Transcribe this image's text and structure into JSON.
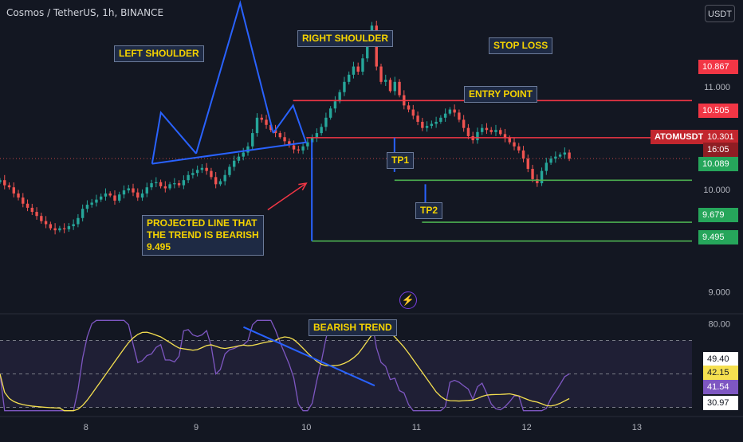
{
  "header": {
    "title": "Cosmos / TetherUS, 1h, BINANCE",
    "currency_button": "USDT"
  },
  "annotations": {
    "left_shoulder": "LEFT SHOULDER",
    "right_shoulder": "RIGHT SHOULDER",
    "stop_loss": "STOP LOSS",
    "entry_point": "ENTRY POINT",
    "tp1": "TP1",
    "tp2": "TP2",
    "projected_line_1": "PROJECTED LINE THAT",
    "projected_line_2": "THE TREND IS BEARISH",
    "projected_line_3": "9.495",
    "bearish_trend": "BEARISH TREND"
  },
  "colors": {
    "background": "#131722",
    "up": "#26a69a",
    "down": "#ef5350",
    "annotation_line": "#2962ff",
    "stop_line": "#f23645",
    "target_line": "#4caf50",
    "rsi_line": "#7e57c2",
    "rsi_ma": "#f5e050"
  },
  "chart_data": [
    {
      "type": "candlestick",
      "symbol": "ATOMUSDT",
      "interval": "1h",
      "x_ticks": [
        "8",
        "9",
        "10",
        "11",
        "12",
        "13"
      ],
      "x_tick_days": [
        8,
        9,
        10,
        11,
        12,
        13
      ],
      "xlim_days": [
        7.22,
        13.5
      ],
      "y_ticks": [
        "11.000",
        "10.000",
        "9.000"
      ],
      "y_tick_values": [
        11.0,
        10.0,
        9.0
      ],
      "ylim": [
        8.8,
        11.85
      ],
      "last_price": {
        "label": "ATOMUSDT",
        "value": "10.301",
        "countdown": "16:05"
      },
      "levels": [
        {
          "name": "stop-loss",
          "value": 10.867,
          "label": "10.867",
          "from_day": 9.88
        },
        {
          "name": "entry-point",
          "value": 10.505,
          "label": "10.505",
          "from_day": 10.0
        },
        {
          "name": "tp1",
          "value": 10.089,
          "label": "10.089",
          "from_day": 10.8
        },
        {
          "name": "tp2",
          "value": 9.679,
          "label": "9.679",
          "from_day": 11.05
        },
        {
          "name": "projected",
          "value": 9.495,
          "label": "9.495",
          "from_day": 10.05
        }
      ],
      "pattern_lines": [
        {
          "name": "left-shoulder",
          "points": [
            [
              8.6,
              10.25
            ],
            [
              8.68,
              10.75
            ],
            [
              9.0,
              10.35
            ]
          ]
        },
        {
          "name": "head",
          "points": [
            [
              9.0,
              10.35
            ],
            [
              9.4,
              11.82
            ],
            [
              9.7,
              10.55
            ]
          ]
        },
        {
          "name": "right-shoulder",
          "points": [
            [
              9.7,
              10.55
            ],
            [
              9.88,
              10.82
            ],
            [
              10.0,
              10.45
            ]
          ]
        },
        {
          "name": "neckline",
          "points": [
            [
              8.6,
              10.25
            ],
            [
              10.0,
              10.46
            ]
          ]
        },
        {
          "name": "projection",
          "points": [
            [
              10.05,
              10.48
            ],
            [
              10.05,
              9.495
            ]
          ]
        },
        {
          "name": "tp1-span",
          "points": [
            [
              10.8,
              10.505
            ],
            [
              10.8,
              10.17
            ]
          ]
        },
        {
          "name": "tp2-span",
          "points": [
            [
              11.08,
              10.05
            ],
            [
              11.08,
              9.72
            ]
          ]
        }
      ],
      "arrow": {
        "from": [
          9.65,
          9.8
        ],
        "to": [
          10.0,
          10.06
        ]
      },
      "closes": [
        10.09,
        10.04,
        10.02,
        9.96,
        9.92,
        9.86,
        9.82,
        9.78,
        9.74,
        9.69,
        9.66,
        9.62,
        9.6,
        9.62,
        9.61,
        9.64,
        9.66,
        9.72,
        9.81,
        9.85,
        9.87,
        9.9,
        9.93,
        9.96,
        9.94,
        9.89,
        9.95,
        9.99,
        10.01,
        9.97,
        9.92,
        9.96,
        10.02,
        10.06,
        10.07,
        10.03,
        10.01,
        10.05,
        10.06,
        10.04,
        10.09,
        10.14,
        10.16,
        10.19,
        10.21,
        10.18,
        10.12,
        10.05,
        10.08,
        10.14,
        10.22,
        10.28,
        10.32,
        10.36,
        10.42,
        10.55,
        10.7,
        10.68,
        10.63,
        10.58,
        10.55,
        10.51,
        10.47,
        10.43,
        10.39,
        10.38,
        10.42,
        10.46,
        10.5,
        10.55,
        10.61,
        10.7,
        10.79,
        10.86,
        10.95,
        11.05,
        11.12,
        11.2,
        11.15,
        11.28,
        11.45,
        11.6,
        11.2,
        11.05,
        11.07,
        10.96,
        11.05,
        10.92,
        10.82,
        10.78,
        10.72,
        10.66,
        10.6,
        10.62,
        10.64,
        10.66,
        10.7,
        10.74,
        10.78,
        10.75,
        10.68,
        10.6,
        10.52,
        10.48,
        10.56,
        10.6,
        10.58,
        10.56,
        10.58,
        10.54,
        10.5,
        10.46,
        10.42,
        10.38,
        10.3,
        10.2,
        10.1,
        10.06,
        10.18,
        10.26,
        10.3,
        10.32,
        10.34,
        10.36,
        10.3
      ],
      "indicator": {
        "type": "line",
        "name": "RSI",
        "y_ticks": [
          "80.00"
        ],
        "labels": [
          {
            "text": "49.40",
            "value": 49.4
          },
          {
            "text": "42.15",
            "value": 42.15
          },
          {
            "text": "41.54",
            "value": 41.54
          },
          {
            "text": "30.97",
            "value": 30.97
          }
        ],
        "band": [
          30,
          70
        ],
        "ylim": [
          25,
          85
        ],
        "trend_line": {
          "from": [
            9.43,
            78
          ],
          "to": [
            10.62,
            43
          ]
        }
      }
    }
  ]
}
